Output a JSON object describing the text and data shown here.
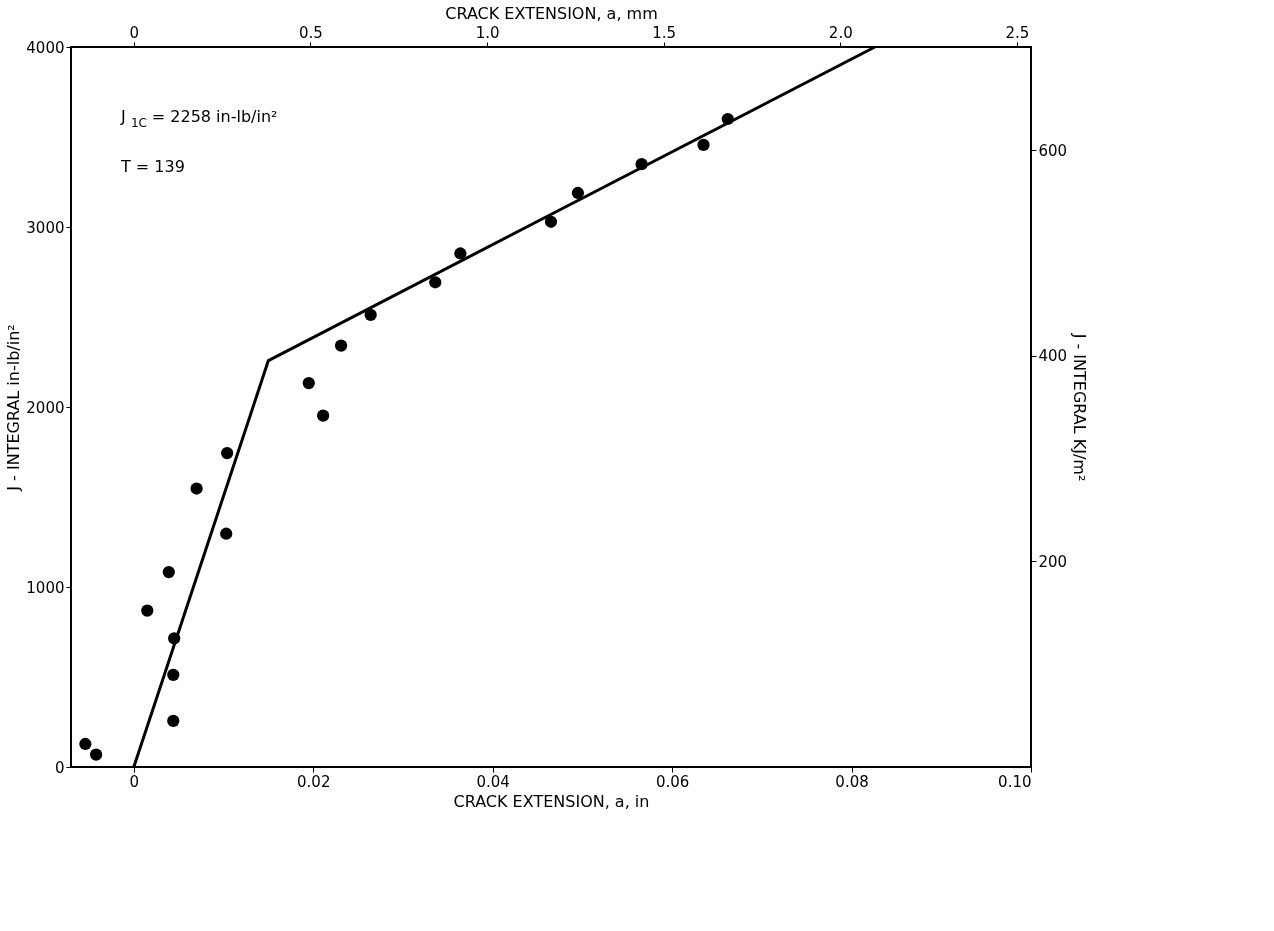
{
  "chart_data": {
    "type": "scatter",
    "xlabel": "CRACK EXTENSION, a, in",
    "x2label": "CRACK EXTENSION, a, mm",
    "ylabel": "J - INTEGRAL in-lb/in²",
    "y2label": "J - INTEGRAL KJ/m²",
    "xlim": [
      -0.007,
      0.1
    ],
    "xticks": [
      {
        "value": 0,
        "label": "0"
      },
      0.02,
      0.04,
      0.06,
      0.08,
      {
        "value": 0.1,
        "label": "0.10"
      }
    ],
    "x2lim": [
      -0.178,
      2.54
    ],
    "x2ticks": [
      0,
      0.5,
      {
        "value": 1,
        "label": "1.0"
      },
      1.5,
      {
        "value": 2,
        "label": "2.0"
      },
      2.5
    ],
    "ylim": [
      0,
      4000
    ],
    "yticks": [
      0,
      1000,
      2000,
      3000,
      4000
    ],
    "y2lim": [
      0,
      700.5
    ],
    "y2ticks": [
      200,
      400,
      600
    ],
    "grid": false,
    "marker": "circle",
    "annotations": [
      "J$_{1C}$ = 2258 in-lb/in²",
      "T = 139"
    ],
    "series": [
      {
        "color": "#000000",
        "x": [
          -0.0054,
          -0.0042,
          0.0015,
          0.0039,
          0.0044,
          0.0044,
          0.0045,
          0.007,
          0.0103,
          0.0104,
          0.0195,
          0.0211,
          0.0231,
          0.0264,
          0.0336,
          0.0364,
          0.0465,
          0.0495,
          0.0566,
          0.0635,
          0.0662
        ],
        "values": [
          128,
          69,
          869,
          1083,
          256,
          512,
          715,
          1547,
          1296,
          1744,
          2133,
          1952,
          2341,
          2512,
          2693,
          2853,
          3029,
          3189,
          3349,
          3456,
          3600
        ]
      },
      {
        "type": "line",
        "marker": "none",
        "color": "#000000",
        "line_style": "solid",
        "x": [
          0,
          0.015,
          0.0826
        ],
        "values": [
          0,
          2258,
          4000
        ]
      }
    ]
  }
}
